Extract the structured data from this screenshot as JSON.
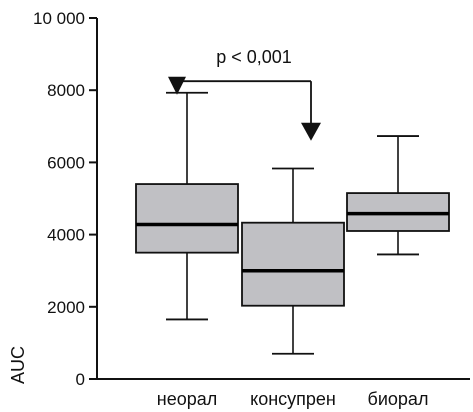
{
  "chart_data": {
    "type": "box",
    "ylabel": "AUC",
    "ylim": [
      0,
      10000
    ],
    "y_ticks": [
      0,
      2000,
      4000,
      6000,
      8000,
      10000
    ],
    "y_tick_labels": [
      "0",
      "2000",
      "4000",
      "6000",
      "8000",
      "10 000"
    ],
    "categories": [
      "неорал",
      "консупрен",
      "биорал"
    ],
    "boxes": [
      {
        "category": "неорал",
        "min": 1650,
        "q1": 3500,
        "median": 4280,
        "q3": 5400,
        "max": 7930
      },
      {
        "category": "консупрен",
        "min": 700,
        "q1": 2030,
        "median": 3000,
        "q3": 4330,
        "max": 5830
      },
      {
        "category": "биорал",
        "min": 3450,
        "q1": 4100,
        "median": 4580,
        "q3": 5150,
        "max": 6730
      }
    ],
    "annotation": {
      "text": "p < 0,001",
      "from_category": "неорал",
      "to_category": "консупрен",
      "from_value": 7930,
      "to_value": 6600,
      "bracket_value": 8250
    },
    "colors": {
      "box_fill": "#c0c0c4",
      "line": "#111111",
      "median": "#000000"
    }
  }
}
